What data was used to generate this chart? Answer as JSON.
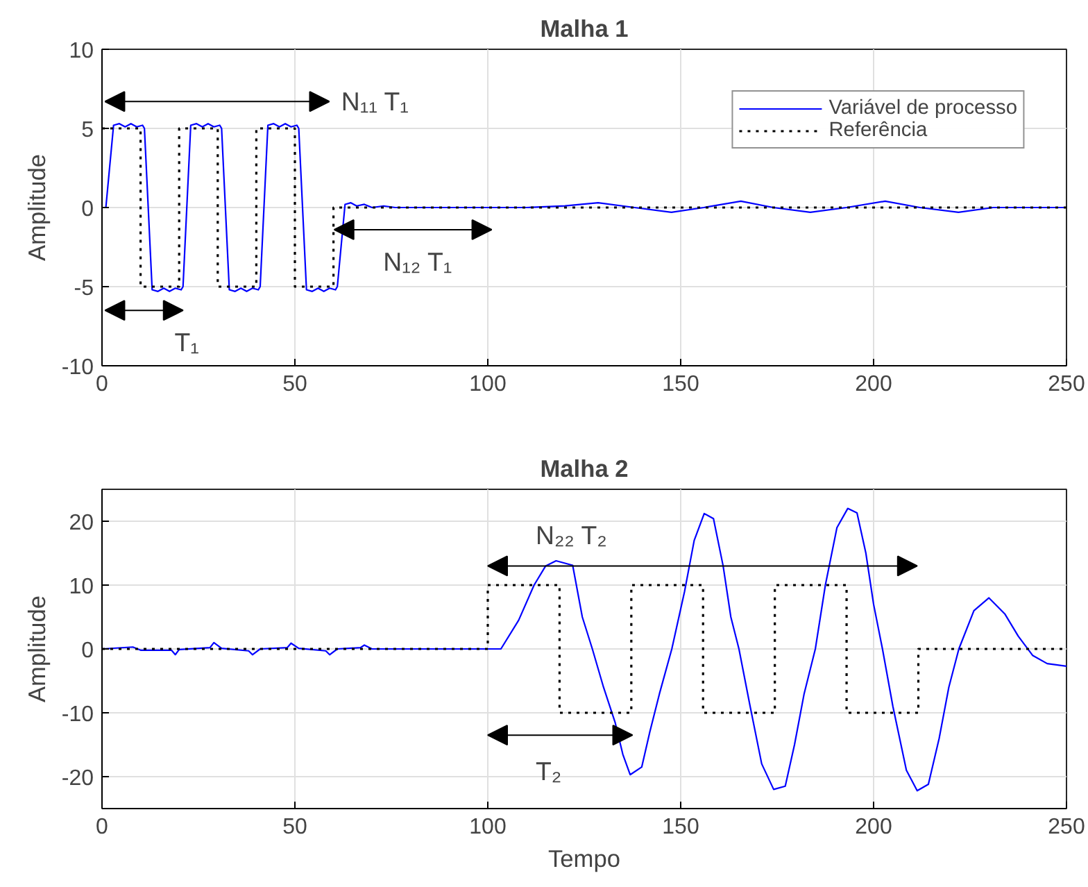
{
  "chart_data": [
    {
      "type": "line",
      "title": "Malha 1",
      "ylabel": "Amplitude",
      "xlim": [
        0,
        250
      ],
      "ylim": [
        -10,
        10
      ],
      "xticks": [
        0,
        50,
        100,
        150,
        200,
        250
      ],
      "yticks": [
        -10,
        -5,
        0,
        5,
        10
      ],
      "grid": true,
      "legend": "top right",
      "marker": "none",
      "series": [
        {
          "name": "Variável de processo",
          "color": "#0000ff",
          "line_style": "solid",
          "x": [
            0,
            1,
            3,
            4.5,
            6,
            7.5,
            9,
            10.5,
            11,
            13,
            14.5,
            16,
            17.5,
            19,
            20.5,
            21,
            23,
            24.5,
            26,
            27.5,
            29,
            30.5,
            31,
            33,
            34.5,
            36,
            37.5,
            39,
            40.5,
            41,
            43,
            44.5,
            46,
            47.5,
            49,
            50.5,
            51,
            53,
            54.5,
            56,
            57.5,
            59,
            60.5,
            61,
            63,
            64.5,
            66,
            68,
            70,
            73,
            76,
            80,
            90,
            100,
            110,
            120,
            128.6,
            138,
            147.6,
            156,
            165.6,
            174,
            183.6,
            193,
            203,
            212,
            222,
            231,
            240,
            250
          ],
          "values": [
            0,
            0,
            5.2,
            5.3,
            5.1,
            5.3,
            5.1,
            5.2,
            5,
            -5.2,
            -5.3,
            -5.1,
            -5.3,
            -5.1,
            -5.2,
            -5,
            5.2,
            5.3,
            5.1,
            5.3,
            5.1,
            5.2,
            5,
            -5.2,
            -5.3,
            -5.1,
            -5.3,
            -5.1,
            -5.2,
            -5,
            5.2,
            5.3,
            5.1,
            5.3,
            5.1,
            5.2,
            5,
            -5.2,
            -5.3,
            -5.1,
            -5.3,
            -5.1,
            -5.2,
            -5,
            0.2,
            0.3,
            0.1,
            0.2,
            0,
            0.1,
            0,
            0,
            0,
            0,
            0,
            0.1,
            0.3,
            0,
            -0.3,
            0,
            0.4,
            0,
            -0.3,
            0,
            0.4,
            0,
            -0.3,
            0,
            0,
            0
          ]
        },
        {
          "name": "Referência",
          "color": "#000000",
          "type": "step",
          "line_style": "dotted",
          "x": [
            0,
            10,
            20,
            30,
            40,
            50,
            60,
            250
          ],
          "values": [
            5,
            -5,
            5,
            -5,
            5,
            -5,
            0,
            0
          ]
        }
      ],
      "annotations": [
        "N₁₁ T₁",
        "N₁₂ T₁",
        "T₁"
      ]
    },
    {
      "type": "line",
      "title": "Malha 2",
      "xlabel": "Tempo",
      "ylabel": "Amplitude",
      "xlim": [
        0,
        250
      ],
      "ylim": [
        -25,
        25
      ],
      "xticks": [
        0,
        50,
        100,
        150,
        200,
        250
      ],
      "yticks": [
        -20,
        -10,
        0,
        10,
        20
      ],
      "grid": true,
      "marker": "none",
      "series": [
        {
          "color": "#0000ff",
          "line_style": "solid",
          "x": [
            0,
            8,
            10,
            18,
            19,
            20,
            28,
            29,
            31,
            38,
            39,
            41,
            48,
            49,
            51,
            58,
            59,
            61,
            67,
            68,
            70,
            80,
            90,
            100,
            103.4,
            108,
            112,
            115,
            117.7,
            122,
            124.5,
            127.1,
            130,
            133,
            135,
            136.9,
            139.9,
            142,
            144.5,
            147.7,
            151,
            153.5,
            156.1,
            158.5,
            161,
            163,
            165.1,
            168,
            171,
            174.1,
            177.1,
            179.5,
            182,
            184.9,
            187.5,
            190.5,
            193.3,
            195.7,
            198,
            200,
            202.3,
            205,
            208.5,
            211.3,
            214.2,
            217,
            219.5,
            222.1,
            226,
            229.9,
            234,
            237.5,
            241.2,
            245,
            250
          ],
          "values": [
            0,
            0.3,
            -0.2,
            -0.2,
            -0.9,
            -0.1,
            0.2,
            1,
            0.1,
            -0.3,
            -0.9,
            0,
            0.2,
            0.9,
            0.1,
            -0.3,
            -0.9,
            0,
            0.2,
            0.6,
            0,
            0,
            0,
            0,
            0,
            4.5,
            10,
            13,
            13.8,
            13.1,
            5,
            0,
            -6,
            -11.5,
            -16.5,
            -19.7,
            -18.5,
            -13,
            -7,
            0,
            9,
            17,
            21.2,
            20.4,
            13,
            5,
            0,
            -9,
            -18,
            -22,
            -21.5,
            -15,
            -7,
            0,
            10,
            19,
            22,
            21.3,
            15,
            7,
            0,
            -9,
            -19,
            -22.2,
            -21.2,
            -14,
            -6,
            0,
            6,
            8,
            5.5,
            2,
            -1,
            -2.3,
            -2.7
          ]
        },
        {
          "color": "#000000",
          "type": "step",
          "line_style": "dotted",
          "x": [
            0,
            100,
            118.6,
            137.2,
            155.8,
            174.4,
            193,
            211.6,
            250
          ],
          "values": [
            0,
            10,
            -10,
            10,
            -10,
            10,
            -10,
            0,
            0
          ]
        }
      ],
      "annotations": [
        "N₂₂ T₂",
        "T₂"
      ]
    }
  ]
}
